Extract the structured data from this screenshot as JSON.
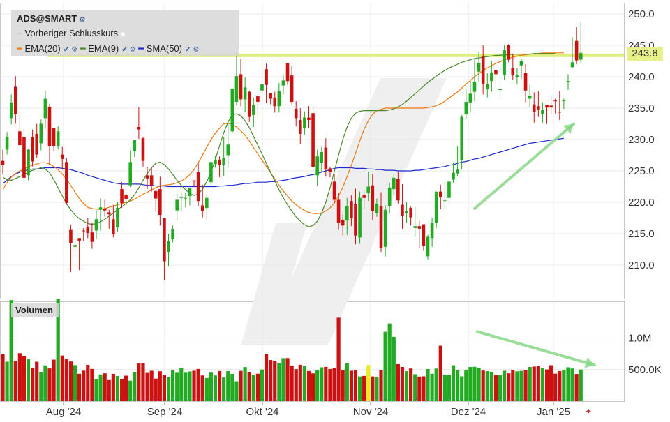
{
  "chart_data": [
    {
      "type": "candlestick",
      "title": "ADS@SMART",
      "y_ticks": [
        250.0,
        245.0,
        240.0,
        235.0,
        230.0,
        225.0,
        220.0,
        215.0,
        210.0
      ],
      "y_tick_labels": [
        "250.0",
        "245.0",
        "240.0",
        "235.0",
        "230.0",
        "225.0",
        "220.0",
        "215.0",
        "210.0"
      ],
      "ylim": [
        205.5,
        251.5
      ],
      "x_tick_labels": [
        "Aug '24",
        "Sep '24",
        "Okt '24",
        "Nov '24",
        "Dez '24",
        "Jan '25"
      ],
      "last_price": 243.8,
      "last_price_label": "243.8",
      "previous_close_line": 243.4,
      "legend": {
        "title": "ADS@SMART",
        "prev_close_label": "Vorheriger Schlusskurs",
        "ema20_label": "EMA(20)",
        "ema9_label": "EMA(9)",
        "sma50_label": "SMA(50)"
      },
      "colors": {
        "up": "#22aa22",
        "down": "#cc1111",
        "ema20": "#f07810",
        "ema9": "#4a8a2a",
        "sma50": "#1a2ad0",
        "prev_close": "#d8ec60",
        "arrow": "#88d888"
      },
      "closes": [
        225.9,
        230.4,
        235.9,
        234.0,
        229.1,
        223.9,
        228.4,
        226.5,
        227.6,
        232.5,
        236.5,
        228.9,
        229.0,
        231.3,
        226.9,
        219.9,
        213.5,
        213.2,
        213.9,
        215.4,
        215.1,
        213.7,
        217.3,
        219.2,
        218.7,
        218.1,
        215.0,
        219.1,
        219.9,
        220.5,
        226.4,
        229.9,
        231.6,
        226.6,
        223.8,
        222.7,
        220.6,
        218.0,
        210.6,
        213.8,
        215.7,
        220.4,
        220.8,
        220.7,
        222.3,
        223.3,
        220.2,
        218.6,
        220.7,
        226.4,
        226.8,
        226.0,
        227.1,
        229.2,
        238.0,
        240.1,
        236.4,
        238.3,
        233.6,
        235.5,
        236.0,
        238.8,
        238.7,
        236.5,
        235.3,
        237.7,
        239.4,
        239.3,
        236.0,
        233.4,
        230.9,
        233.5,
        233.1,
        225.6,
        227.3,
        228.0,
        225.3,
        224.8,
        220.4,
        216.7,
        216.3,
        219.4,
        217.5,
        214.7,
        220.7,
        220.7,
        222.5,
        218.6,
        219.8,
        212.7,
        218.8,
        222.3,
        223.9,
        220.3,
        217.9,
        218.6,
        217.6,
        216.2,
        215.8,
        213.1,
        214.5,
        216.7,
        221.7,
        220.8,
        220.3,
        223.3,
        224.7,
        225.2,
        233.6,
        236.0,
        237.3,
        239.2,
        242.2,
        238.9,
        238.8,
        240.7,
        240.4,
        238.0,
        244.2,
        242.7,
        240.2,
        240.2,
        242.5,
        237.8,
        237.0,
        234.4,
        234.8,
        234.7,
        235.1,
        235.1,
        236.1,
        234.3,
        236.2,
        239.3,
        242.3,
        242.6,
        243.8
      ],
      "opens": [
        226.6,
        228.4,
        233.4,
        238.4,
        231.3,
        230.4,
        224.3,
        230.4,
        230.9,
        229.4,
        233.4,
        235.2,
        231.8,
        229.0,
        227.6,
        226.4,
        215.6,
        212.9,
        214.3,
        215.5,
        216.0,
        215.2,
        215.5,
        218.8,
        219.0,
        218.4,
        217.3,
        216.0,
        222.1,
        221.2,
        222.7,
        228.2,
        232.0,
        230.2,
        224.3,
        224.3,
        221.8,
        222.1,
        217.5,
        212.1,
        214.1,
        218.7,
        220.7,
        220.7,
        221.0,
        223.5,
        224.8,
        219.5,
        219.1,
        223.2,
        226.1,
        226.8,
        226.0,
        227.5,
        231.3,
        236.0,
        240.4,
        236.4,
        237.6,
        233.9,
        236.9,
        237.8,
        241.2,
        237.4,
        236.7,
        235.3,
        238.6,
        242.2,
        240.2,
        234.9,
        233.1,
        231.8,
        233.5,
        234.2,
        224.3,
        226.3,
        228.7,
        225.4,
        223.3,
        220.4,
        217.2,
        217.1,
        220.2,
        219.7,
        214.4,
        221.1,
        221.5,
        222.7,
        218.3,
        219.4,
        212.9,
        219.4,
        222.1,
        223.7,
        219.6,
        218.3,
        219.1,
        215.9,
        216.2,
        216.5,
        211.4,
        214.3,
        216.7,
        221.7,
        220.2,
        220.7,
        223.6,
        224.6,
        226.7,
        234.0,
        235.9,
        237.6,
        240.8,
        243.2,
        238.0,
        239.3,
        241.0,
        238.0,
        240.3,
        245.0,
        241.4,
        240.0,
        241.8,
        240.6,
        236.5,
        235.6,
        235.3,
        234.1,
        235.5,
        235.4,
        236.2,
        234.4,
        236.2,
        239.2,
        241.5,
        245.7,
        242.7
      ],
      "highs": [
        228.4,
        231.2,
        237.2,
        240.1,
        233.9,
        231.8,
        228.5,
        231.6,
        232.5,
        233.2,
        237.8,
        235.7,
        231.3,
        232.1,
        228.8,
        227.0,
        216.4,
        214.5,
        214.3,
        215.9,
        217.5,
        216.7,
        218.7,
        220.6,
        220.4,
        218.8,
        219.6,
        220.1,
        223.2,
        221.6,
        228.3,
        229.9,
        235.1,
        230.4,
        225.6,
        225.7,
        222.0,
        224.1,
        217.5,
        215.0,
        216.3,
        221.4,
        221.6,
        221.5,
        222.3,
        223.5,
        226.3,
        222.8,
        221.2,
        226.5,
        227.4,
        227.3,
        230.4,
        233.1,
        238.2,
        243.9,
        242.8,
        239.9,
        237.8,
        236.7,
        237.2,
        240.4,
        242.1,
        237.4,
        237.6,
        239.0,
        240.3,
        242.2,
        241.7,
        236.1,
        235.0,
        234.5,
        235.3,
        235.1,
        228.4,
        228.8,
        230.2,
        225.6,
        224.5,
        221.5,
        218.1,
        220.7,
        221.1,
        222.2,
        221.7,
        222.0,
        224.9,
        224.5,
        220.6,
        221.6,
        219.5,
        223.1,
        224.6,
        224.9,
        222.9,
        220.0,
        219.3,
        219.3,
        217.0,
        216.5,
        214.8,
        217.6,
        221.7,
        222.8,
        223.5,
        224.9,
        226.3,
        228.9,
        233.9,
        238.1,
        239.3,
        242.8,
        243.9,
        245.0,
        240.6,
        242.5,
        241.3,
        241.4,
        245.0,
        245.2,
        243.7,
        241.4,
        242.8,
        242.0,
        238.7,
        237.5,
        237.7,
        235.9,
        235.5,
        237.0,
        236.5,
        237.7,
        236.5,
        240.4,
        246.3,
        247.9,
        248.7
      ],
      "lows": [
        224.4,
        227.6,
        232.4,
        232.5,
        228.8,
        223.4,
        223.5,
        225.7,
        227.1,
        228.3,
        231.7,
        226.0,
        228.2,
        228.4,
        225.2,
        219.6,
        208.9,
        211.4,
        209.2,
        213.9,
        214.3,
        212.6,
        214.2,
        215.5,
        217.7,
        215.8,
        214.4,
        215.3,
        219.1,
        219.4,
        222.4,
        227.2,
        230.1,
        225.7,
        222.1,
        221.7,
        218.5,
        216.3,
        207.6,
        209.8,
        213.6,
        217.2,
        218.6,
        219.2,
        219.5,
        222.5,
        219.4,
        217.6,
        217.4,
        222.8,
        225.5,
        224.0,
        224.2,
        225.5,
        231.0,
        235.4,
        235.3,
        234.4,
        232.8,
        232.0,
        233.9,
        236.4,
        235.8,
        235.6,
        234.3,
        234.3,
        237.2,
        238.7,
        235.6,
        232.1,
        229.3,
        230.8,
        231.8,
        224.5,
        222.6,
        224.9,
        224.1,
        224.0,
        219.8,
        215.6,
        214.7,
        214.8,
        216.2,
        213.3,
        213.4,
        219.0,
        220.2,
        217.2,
        217.7,
        212.1,
        211.4,
        218.2,
        221.1,
        219.8,
        215.8,
        216.7,
        216.3,
        214.5,
        212.7,
        212.3,
        210.8,
        212.9,
        215.9,
        218.9,
        218.9,
        219.8,
        223.1,
        224.1,
        225.2,
        233.3,
        234.4,
        236.1,
        239.1,
        237.2,
        236.7,
        237.6,
        239.3,
        236.5,
        239.5,
        242.3,
        239.5,
        238.8,
        239.7,
        235.9,
        235.2,
        232.7,
        233.6,
        232.7,
        232.5,
        234.1,
        234.1,
        233.1,
        234.9,
        237.9,
        241.6,
        242.0,
        242.1
      ],
      "ema20": [
        222.0,
        223.2,
        224.0,
        224.6,
        225.0,
        225.3,
        225.7,
        225.9,
        226.1,
        226.3,
        226.3,
        226.1,
        225.7,
        225.2,
        224.5,
        223.7,
        222.7,
        221.6,
        220.6,
        219.8,
        219.2,
        219.0,
        218.9,
        218.9,
        219.0,
        219.2,
        219.4,
        219.6,
        219.8,
        220.0,
        220.2,
        220.5,
        220.9,
        221.3,
        221.6,
        222.0,
        222.3,
        222.6,
        222.7,
        222.8,
        222.9,
        223.1,
        223.4,
        223.8,
        224.4,
        225.2,
        226.3,
        227.5,
        228.8,
        230.0,
        231.0,
        231.8,
        232.5,
        232.6,
        232.4,
        232.0,
        231.4,
        230.7,
        229.8,
        228.7,
        227.7,
        226.7,
        225.7,
        224.7,
        223.7,
        222.7,
        221.8,
        221.0,
        220.2,
        219.6,
        219.1,
        218.7,
        218.4,
        218.2,
        218.2,
        218.3,
        218.6,
        219.1,
        219.9,
        221.0,
        222.4,
        224.1,
        225.9,
        227.8,
        229.8,
        231.6,
        233.0,
        234.0,
        234.6,
        234.8,
        235.0,
        235.0,
        235.0,
        235.0,
        235.0,
        235.0,
        235.0,
        235.0,
        235.0,
        235.0,
        235.1,
        235.2,
        235.4,
        235.7,
        236.1,
        236.6,
        237.1,
        237.6,
        238.2,
        238.8,
        239.4,
        240.0,
        240.5,
        241.0,
        241.4,
        241.8,
        242.1,
        242.4,
        242.7,
        242.9,
        243.1,
        243.3,
        243.4,
        243.5,
        243.6,
        243.7,
        243.7,
        243.8,
        243.8,
        243.8,
        243.8,
        243.8,
        243.8
      ],
      "ema9": [
        224.0,
        223.6,
        223.5,
        223.8,
        224.1,
        224.4,
        224.8,
        225.1,
        225.3,
        225.5,
        225.3,
        224.7,
        223.6,
        222.3,
        221.0,
        219.8,
        218.8,
        218.0,
        217.4,
        217.0,
        216.6,
        216.5,
        216.6,
        216.9,
        217.3,
        217.8,
        218.3,
        218.8,
        219.3,
        219.8,
        220.4,
        221.2,
        222.3,
        223.5,
        224.6,
        225.5,
        226.2,
        226.4,
        226.0,
        225.3,
        224.4,
        223.5,
        222.7,
        222.0,
        221.4,
        221.1,
        221.3,
        222.1,
        223.3,
        224.8,
        226.8,
        229.0,
        231.1,
        232.8,
        233.9,
        234.1,
        233.8,
        233.0,
        231.9,
        230.5,
        229.1,
        227.7,
        226.2,
        224.8,
        223.4,
        222.0,
        220.7,
        219.6,
        218.6,
        217.7,
        217.0,
        216.4,
        216.1,
        216.3,
        217.0,
        218.3,
        220.0,
        222.3,
        224.9,
        227.5,
        230.0,
        232.0,
        233.4,
        234.2,
        234.5,
        234.6,
        234.6,
        234.6,
        234.6,
        234.6,
        234.6,
        234.7,
        234.9,
        235.2,
        235.6,
        236.1,
        236.7,
        237.3,
        237.9,
        238.5,
        239.1,
        239.6,
        240.1,
        240.6,
        241.0,
        241.4,
        241.7,
        242.0,
        242.3,
        242.5,
        242.7,
        242.9,
        243.0,
        243.1,
        243.2,
        243.3,
        243.4,
        243.4,
        243.5,
        243.5,
        243.6,
        243.6,
        243.6,
        243.6,
        243.6,
        243.7,
        243.7,
        243.7,
        243.7,
        243.7,
        243.7
      ],
      "sma50": [
        223.0,
        223.5,
        224.1,
        224.5,
        224.8,
        225.0,
        225.2,
        225.3,
        225.3,
        225.4,
        225.5,
        225.5,
        225.5,
        225.5,
        225.4,
        225.3,
        225.2,
        225.0,
        224.8,
        224.6,
        224.3,
        224.1,
        223.9,
        223.7,
        223.5,
        223.3,
        223.1,
        223.0,
        222.9,
        222.9,
        222.9,
        222.9,
        222.9,
        222.8,
        222.7,
        222.7,
        222.6,
        222.6,
        222.6,
        222.5,
        222.5,
        222.5,
        222.5,
        222.5,
        222.5,
        222.5,
        222.5,
        222.5,
        222.5,
        222.5,
        222.5,
        222.6,
        222.6,
        222.7,
        222.7,
        222.8,
        222.9,
        223.0,
        223.0,
        223.1,
        223.2,
        223.2,
        223.2,
        223.3,
        223.3,
        223.4,
        223.5,
        223.6,
        223.8,
        223.9,
        224.0,
        224.1,
        224.3,
        224.4,
        224.6,
        224.8,
        225.0,
        225.2,
        225.4,
        225.5,
        225.5,
        225.5,
        225.5,
        225.4,
        225.4,
        225.4,
        225.3,
        225.3,
        225.2,
        225.2,
        225.1,
        225.1,
        225.1,
        225.0,
        225.0,
        225.0,
        225.0,
        225.1,
        225.1,
        225.2,
        225.3,
        225.4,
        225.5,
        225.6,
        225.7,
        225.9,
        226.0,
        226.2,
        226.4,
        226.5,
        226.7,
        226.9,
        227.0,
        227.2,
        227.4,
        227.6,
        227.8,
        228.0,
        228.2,
        228.4,
        228.6,
        228.8,
        229.0,
        229.2,
        229.4,
        229.5,
        229.6,
        229.7,
        229.8,
        229.9,
        230.0,
        230.1,
        230.2
      ],
      "arrow_start": 219.0,
      "arrow_end": 232.5
    },
    {
      "type": "bar",
      "title": "Volumen",
      "y_ticks": [
        1000000,
        500000
      ],
      "y_tick_labels": [
        "1.0M",
        "500.0K"
      ],
      "ylim": [
        0,
        1650000
      ],
      "highlight_index": 86,
      "highlight_color": "#e8ec20",
      "volumes": [
        745000,
        625000,
        1600000,
        632000,
        759000,
        714000,
        666000,
        521000,
        624000,
        461000,
        566000,
        518000,
        657000,
        1618000,
        722000,
        668000,
        628000,
        570000,
        433000,
        483000,
        575000,
        510000,
        345000,
        422000,
        440000,
        334000,
        432000,
        398000,
        351000,
        403000,
        324000,
        461000,
        596000,
        599000,
        447000,
        481000,
        356000,
        473000,
        414000,
        376000,
        493000,
        449000,
        527000,
        449000,
        470000,
        482000,
        510000,
        406000,
        366000,
        451000,
        406000,
        477000,
        374000,
        475000,
        430000,
        314000,
        479000,
        540000,
        453000,
        419000,
        434000,
        500000,
        749000,
        651000,
        637000,
        600000,
        680000,
        682000,
        559000,
        507000,
        576000,
        557000,
        477000,
        439000,
        487000,
        536000,
        543000,
        509000,
        519000,
        1322000,
        490000,
        598000,
        481000,
        491000,
        391000,
        399000,
        572000,
        391000,
        386000,
        495000,
        1098000,
        1231000,
        1018000,
        586000,
        542000,
        474000,
        517000,
        426000,
        389000,
        393000,
        509000,
        434000,
        516000,
        878000,
        418000,
        412000,
        568000,
        487000,
        393000,
        487000,
        541000,
        544000,
        526000,
        484000,
        474000,
        463000,
        409000,
        412000,
        481000,
        440000,
        497000,
        472000,
        479000,
        488000,
        541000,
        548000,
        557000,
        519000,
        501000,
        569000,
        435000,
        476000,
        492000,
        537000,
        517000,
        430000,
        500000
      ],
      "arrow_start": 1100000,
      "arrow_end": 570000
    }
  ]
}
